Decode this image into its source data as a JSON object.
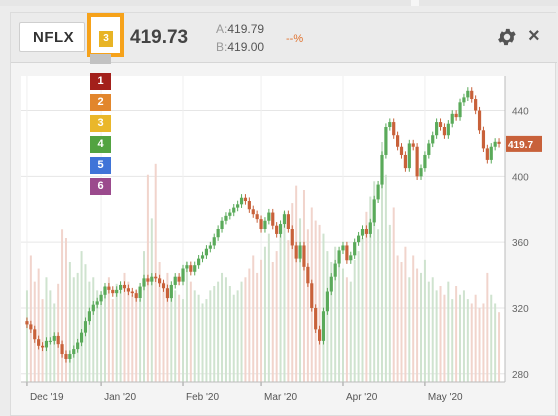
{
  "header": {
    "symbol": "NFLX",
    "link_chip": "3",
    "last_price": "419.73",
    "ask_label": "A:",
    "ask": "419.79",
    "bid_label": "B:",
    "bid": "419.00",
    "change_pct": "--%"
  },
  "link_menu": {
    "items": [
      {
        "label": "",
        "color": "#c2c2c2"
      },
      {
        "label": "1",
        "color": "#a3201b"
      },
      {
        "label": "2",
        "color": "#e2862c"
      },
      {
        "label": "3",
        "color": "#eab72a"
      },
      {
        "label": "4",
        "color": "#52a341"
      },
      {
        "label": "5",
        "color": "#3f74d8"
      },
      {
        "label": "6",
        "color": "#9b4a8d"
      }
    ]
  },
  "icons": {
    "settings": "gear-icon",
    "close": "close-icon"
  },
  "close_glyph": "×",
  "colors": {
    "up": "#5aaa5a",
    "down": "#c8613a",
    "accent": "#f6a21a",
    "price_tag": "#c8613a"
  },
  "chart_data": {
    "type": "candlestick",
    "symbol": "NFLX",
    "x_ticks": [
      "Dec '19",
      "Jan '20",
      "Feb '20",
      "Mar '20",
      "Apr '20",
      "May '20"
    ],
    "y_ticks": [
      280,
      320,
      360,
      400,
      440
    ],
    "ylim": [
      275,
      461
    ],
    "last_price_label": "419.7",
    "last_price": 419.73,
    "closes": [
      310,
      307,
      301,
      297,
      296,
      300,
      300,
      303,
      298,
      292,
      289,
      292,
      295,
      299,
      305,
      312,
      318,
      322,
      324,
      328,
      333,
      331,
      329,
      331,
      334,
      332,
      330,
      329,
      326,
      333,
      338,
      336,
      339,
      338,
      335,
      332,
      326,
      334,
      339,
      336,
      344,
      346,
      342,
      346,
      350,
      352,
      356,
      358,
      363,
      368,
      373,
      376,
      378,
      381,
      383,
      387,
      385,
      380,
      377,
      374,
      368,
      373,
      378,
      370,
      365,
      371,
      377,
      368,
      358,
      350,
      358,
      345,
      335,
      320,
      307,
      300,
      318,
      330,
      339,
      347,
      355,
      358,
      349,
      352,
      360,
      364,
      368,
      365,
      372,
      386,
      395,
      413,
      430,
      433,
      425,
      418,
      413,
      405,
      420,
      418,
      400,
      405,
      413,
      420,
      425,
      433,
      430,
      425,
      432,
      438,
      436,
      445,
      448,
      452,
      447,
      440,
      428,
      417,
      410,
      418,
      421,
      419.73
    ],
    "volume": [
      42,
      58,
      46,
      52,
      38,
      48,
      42,
      36,
      45,
      70,
      66,
      55,
      48,
      50,
      60,
      54,
      46,
      48,
      42,
      40,
      44,
      48,
      38,
      45,
      42,
      50,
      46,
      40,
      42,
      38,
      60,
      95,
      75,
      100,
      55,
      46,
      50,
      44,
      42,
      40,
      38,
      55,
      46,
      42,
      40,
      36,
      38,
      42,
      44,
      46,
      50,
      48,
      44,
      40,
      42,
      46,
      48,
      52,
      58,
      50,
      56,
      62,
      68,
      55,
      60,
      70,
      78,
      65,
      82,
      90,
      75,
      88,
      70,
      80,
      74,
      72,
      68,
      60,
      55,
      62,
      58,
      52,
      48,
      46,
      56,
      60,
      66,
      78,
      85,
      92,
      70,
      110,
      95,
      72,
      80,
      58,
      55,
      62,
      48,
      58,
      52,
      50,
      56,
      46,
      48,
      42,
      44,
      40,
      46,
      38,
      44,
      40,
      42,
      38,
      36,
      40,
      34,
      36,
      50,
      40,
      36,
      32
    ]
  }
}
